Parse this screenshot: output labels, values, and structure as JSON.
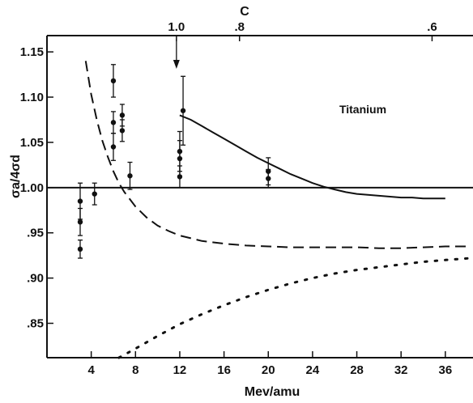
{
  "chart_data": {
    "type": "scatter",
    "title": "",
    "xlabel": "Mev/amu",
    "ylabel": "σa/4σd",
    "xlim": [
      0,
      38.5
    ],
    "ylim": [
      0.812,
      1.168
    ],
    "x_ticks": [
      4,
      8,
      12,
      16,
      20,
      24,
      28,
      32,
      36
    ],
    "x_tick_labels": [
      "4",
      "8",
      "12",
      "16",
      "20",
      "24",
      "28",
      "32",
      "36"
    ],
    "y_ticks": [
      0.85,
      0.9,
      0.95,
      1.0,
      1.05,
      1.1,
      1.15
    ],
    "y_tick_labels": [
      ".85",
      ".90",
      ".95",
      "1.00",
      "1.05",
      "1.10",
      "1.15"
    ],
    "top_axis": {
      "label": "C",
      "ticks": [
        {
          "label": "1.0",
          "x": 11.7
        },
        {
          "label": ".8",
          "x": 17.4
        },
        {
          "label": ".6",
          "x": 34.8
        }
      ]
    },
    "annotation": "Titanium",
    "arrow_x": 11.7,
    "reference_line_y": 1.0,
    "series": [
      {
        "style": "points",
        "points": [
          {
            "x": 3.0,
            "y": 0.985,
            "err": 0.02
          },
          {
            "x": 3.0,
            "y": 0.962,
            "err": 0.015
          },
          {
            "x": 3.0,
            "y": 0.932,
            "err": 0.01
          },
          {
            "x": 4.3,
            "y": 0.993,
            "err": 0.012
          },
          {
            "x": 6.0,
            "y": 1.118,
            "err": 0.018
          },
          {
            "x": 6.0,
            "y": 1.072,
            "err": 0.012
          },
          {
            "x": 6.0,
            "y": 1.045,
            "err": 0.015
          },
          {
            "x": 6.8,
            "y": 1.08,
            "err": 0.012
          },
          {
            "x": 6.8,
            "y": 1.063,
            "err": 0.012
          },
          {
            "x": 7.5,
            "y": 1.013,
            "err": 0.015
          },
          {
            "x": 12.0,
            "y": 1.04,
            "err": 0.022
          },
          {
            "x": 12.0,
            "y": 1.032,
            "err": 0.02
          },
          {
            "x": 12.0,
            "y": 1.012,
            "err": 0.012
          },
          {
            "x": 12.3,
            "y": 1.085,
            "err": 0.038
          },
          {
            "x": 20.0,
            "y": 1.018,
            "err": 0.015
          },
          {
            "x": 20.0,
            "y": 1.01,
            "err": 0.01
          }
        ]
      },
      {
        "style": "solid",
        "x": [
          12.0,
          13,
          14,
          15,
          16,
          17,
          18,
          19,
          20,
          21,
          22,
          23,
          24,
          25,
          26,
          27,
          28,
          29,
          30,
          31,
          32,
          33,
          34,
          35,
          36
        ],
        "y": [
          1.08,
          1.075,
          1.068,
          1.061,
          1.054,
          1.047,
          1.04,
          1.033,
          1.027,
          1.021,
          1.015,
          1.01,
          1.005,
          1.001,
          0.998,
          0.995,
          0.993,
          0.992,
          0.991,
          0.99,
          0.989,
          0.989,
          0.988,
          0.988,
          0.988
        ]
      },
      {
        "style": "dashed",
        "x": [
          3.5,
          4,
          4.5,
          5,
          5.5,
          6,
          6.5,
          7,
          7.5,
          8,
          9,
          10,
          11,
          12,
          13,
          14,
          16,
          18,
          20,
          22,
          24,
          26,
          28,
          30,
          32,
          34,
          36,
          38
        ],
        "y": [
          1.14,
          1.103,
          1.075,
          1.052,
          1.034,
          1.018,
          1.005,
          0.995,
          0.987,
          0.979,
          0.967,
          0.958,
          0.952,
          0.947,
          0.944,
          0.941,
          0.938,
          0.936,
          0.935,
          0.934,
          0.934,
          0.934,
          0.934,
          0.933,
          0.933,
          0.934,
          0.935,
          0.935
        ]
      },
      {
        "style": "dotted",
        "x": [
          6.5,
          8,
          10,
          12,
          14,
          16,
          18,
          20,
          22,
          24,
          26,
          28,
          30,
          32,
          34,
          36,
          38.3
        ],
        "y": [
          0.812,
          0.822,
          0.836,
          0.849,
          0.86,
          0.87,
          0.879,
          0.887,
          0.894,
          0.9,
          0.905,
          0.909,
          0.912,
          0.915,
          0.918,
          0.92,
          0.922
        ]
      }
    ]
  }
}
